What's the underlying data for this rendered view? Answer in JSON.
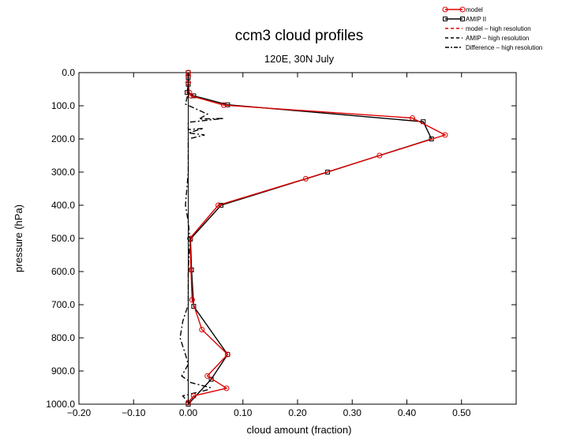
{
  "chart_data": {
    "type": "line",
    "title": "ccm3 cloud profiles",
    "subtitle": "120E, 30N July",
    "xlabel": "cloud amount (fraction)",
    "ylabel": "pressure (hPa)",
    "xlim": [
      -0.2,
      0.6
    ],
    "ylim": [
      1000,
      0
    ],
    "y_inverted": true,
    "grid": false,
    "legend_position": "top-right",
    "xticks": [
      -0.2,
      -0.1,
      0.0,
      0.1,
      0.2,
      0.3,
      0.4,
      0.5
    ],
    "xtick_labels": [
      "−0.20",
      "−0.10",
      "0.00",
      "0.10",
      "0.20",
      "0.30",
      "0.40",
      "0.50"
    ],
    "yticks": [
      0,
      100,
      200,
      300,
      400,
      500,
      600,
      700,
      800,
      900,
      1000
    ],
    "ytick_labels": [
      "0.0",
      "100.0",
      "200.0",
      "300.0",
      "400.0",
      "500.0",
      "600.0",
      "700.0",
      "800.0",
      "900.0",
      "1000.0"
    ],
    "series": [
      {
        "name": "model",
        "color": "#e00000",
        "style": "solid",
        "marker": "circle",
        "points": [
          [
            0.0,
            0
          ],
          [
            0.0,
            10
          ],
          [
            0.0,
            30
          ],
          [
            0.002,
            60
          ],
          [
            0.005,
            70
          ],
          [
            0.065,
            98
          ],
          [
            0.41,
            137
          ],
          [
            0.47,
            188
          ],
          [
            0.35,
            250
          ],
          [
            0.215,
            320
          ],
          [
            0.055,
            400
          ],
          [
            0.003,
            500
          ],
          [
            0.005,
            595
          ],
          [
            0.007,
            685
          ],
          [
            0.025,
            775
          ],
          [
            0.072,
            850
          ],
          [
            0.035,
            915
          ],
          [
            0.07,
            952
          ],
          [
            0.01,
            975
          ],
          [
            0.0,
            995
          ]
        ]
      },
      {
        "name": "AMIP II",
        "color": "#000000",
        "style": "solid",
        "marker": "square",
        "points": [
          [
            0.0,
            0
          ],
          [
            0.0,
            15
          ],
          [
            0.0,
            35
          ],
          [
            -0.002,
            60
          ],
          [
            0.01,
            70
          ],
          [
            0.072,
            97
          ],
          [
            0.43,
            148
          ],
          [
            0.445,
            200
          ],
          [
            0.255,
            300
          ],
          [
            0.06,
            400
          ],
          [
            0.004,
            502
          ],
          [
            0.006,
            595
          ],
          [
            0.01,
            705
          ],
          [
            0.072,
            850
          ],
          [
            0.042,
            925
          ],
          [
            0.0,
            1000
          ]
        ]
      },
      {
        "name": "model – high resolution",
        "color": "#e00000",
        "style": "dashed",
        "marker": "none",
        "points": []
      },
      {
        "name": "AMIP – high resolution",
        "color": "#000000",
        "style": "dashed",
        "marker": "none",
        "points": []
      },
      {
        "name": "Difference – high resolution",
        "color": "#000000",
        "style": "dashdot",
        "marker": "none",
        "points": [
          [
            0.0,
            0
          ],
          [
            0.0,
            60
          ],
          [
            -0.005,
            95
          ],
          [
            0.035,
            125
          ],
          [
            0.02,
            140
          ],
          [
            0.065,
            138
          ],
          [
            0.0,
            150
          ],
          [
            0.0,
            172
          ],
          [
            0.028,
            168
          ],
          [
            0.0,
            182
          ],
          [
            0.03,
            188
          ],
          [
            0.0,
            200
          ],
          [
            0.0,
            300
          ],
          [
            -0.005,
            400
          ],
          [
            0.0,
            450
          ],
          [
            0.003,
            500
          ],
          [
            0.0,
            600
          ],
          [
            0.0,
            700
          ],
          [
            -0.01,
            750
          ],
          [
            -0.015,
            800
          ],
          [
            -0.005,
            850
          ],
          [
            0.0,
            880
          ],
          [
            -0.012,
            915
          ],
          [
            0.005,
            935
          ],
          [
            0.04,
            950
          ],
          [
            0.035,
            957
          ],
          [
            -0.01,
            975
          ],
          [
            0.0,
            995
          ]
        ]
      }
    ]
  }
}
